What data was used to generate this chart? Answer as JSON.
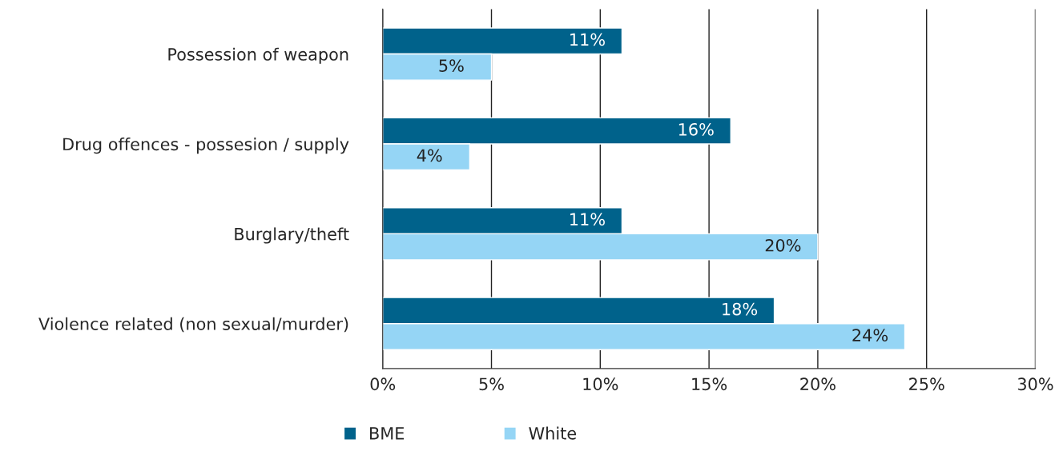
{
  "chart_data": {
    "type": "bar",
    "orientation": "horizontal",
    "categories": [
      "Possession of weapon",
      "Drug offences - possesion / supply",
      "Burglary/theft",
      "Violence related (non sexual/murder)"
    ],
    "series": [
      {
        "name": "BME",
        "color": "#00628b",
        "values": [
          11,
          16,
          11,
          18
        ],
        "value_labels": [
          "11%",
          "16%",
          "11%",
          "18%"
        ]
      },
      {
        "name": "White",
        "color": "#95d5f5",
        "values": [
          5,
          4,
          20,
          24
        ],
        "value_labels": [
          "5%",
          "4%",
          "20%",
          "24%"
        ]
      }
    ],
    "xlim": [
      0,
      30
    ],
    "xticks": [
      {
        "value": 0,
        "label": "0%"
      },
      {
        "value": 5,
        "label": "5%"
      },
      {
        "value": 10,
        "label": "10%"
      },
      {
        "value": 15,
        "label": "15%"
      },
      {
        "value": 20,
        "label": "20%"
      },
      {
        "value": 25,
        "label": "25%"
      },
      {
        "value": 30,
        "label": "30%"
      }
    ],
    "grid": "x",
    "legend": "bottom"
  }
}
